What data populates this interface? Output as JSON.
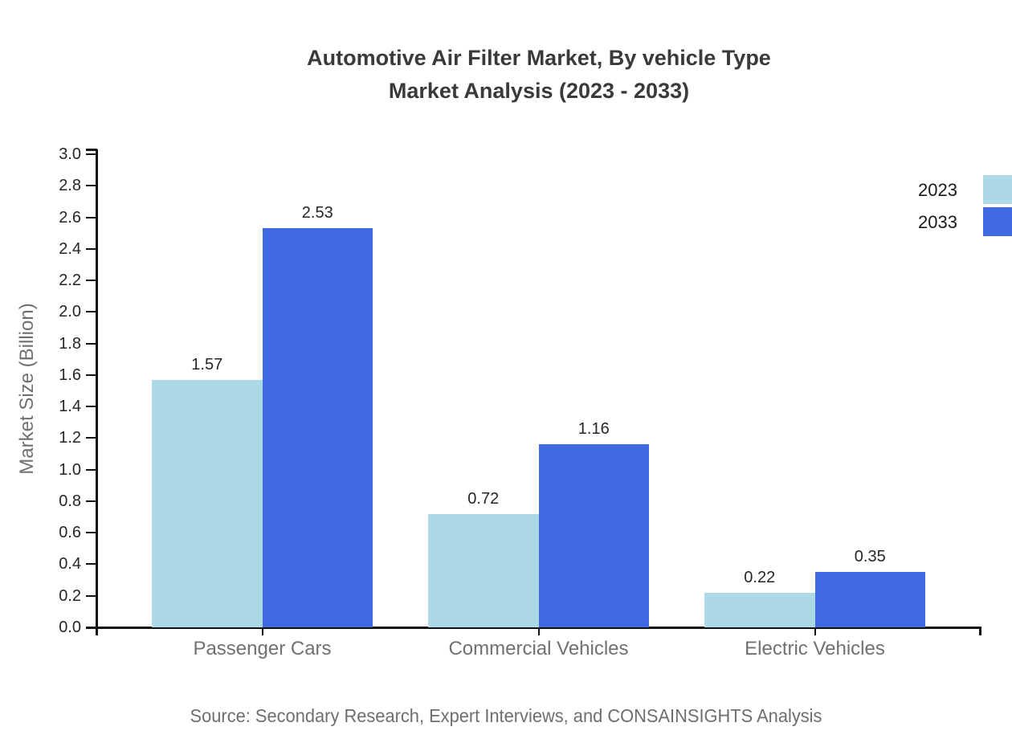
{
  "title": {
    "line1": "Automotive Air Filter Market, By vehicle Type",
    "line2": "Market Analysis (2023 - 2033)"
  },
  "source": "Source: Secondary Research, Expert Interviews, and CONSAINSIGHTS Analysis",
  "colors": {
    "series_2023": "#ADD8E6",
    "series_2033": "#4169E1",
    "axis": "#111111",
    "title_text": "#3a3a3a",
    "tick_text": "#262626",
    "muted_text": "#707070"
  },
  "chart_data": {
    "type": "bar",
    "categories": [
      "Passenger Cars",
      "Commercial Vehicles",
      "Electric Vehicles"
    ],
    "series": [
      {
        "name": "2023",
        "color": "#ADD8E6",
        "values": [
          1.57,
          0.72,
          0.22
        ]
      },
      {
        "name": "2033",
        "color": "#4169E1",
        "values": [
          2.53,
          1.16,
          0.35
        ]
      }
    ],
    "title": "Automotive Air Filter Market, By vehicle Type Market Analysis (2023 - 2033)",
    "xlabel": "",
    "ylabel": "Market Size (Billion)",
    "ylim": [
      0.0,
      3.0
    ],
    "ytick_step": 0.2,
    "ytick_decimals": 1,
    "grid": false,
    "legend_position": "top-right",
    "value_labels": true
  }
}
